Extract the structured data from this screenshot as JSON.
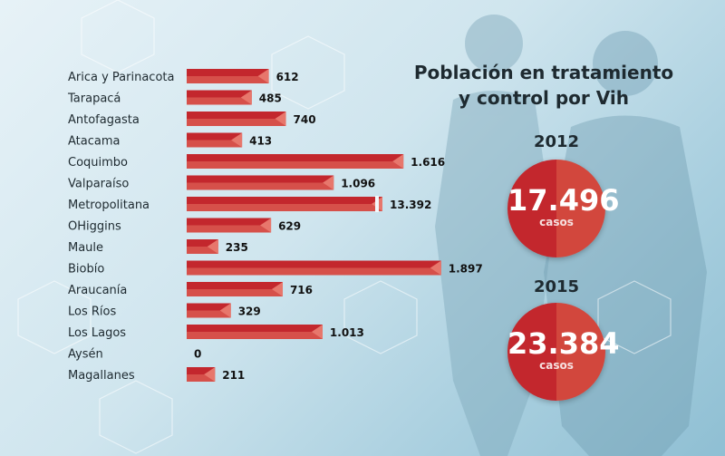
{
  "colors": {
    "bar": "#c3272d",
    "bar_light": "#d6504a",
    "text": "#1e2a30"
  },
  "chart_data": {
    "type": "bar",
    "orientation": "horizontal",
    "categories": [
      "Arica y Parinacota",
      "Tarapacá",
      "Antofagasta",
      "Atacama",
      "Coquimbo",
      "Valparaíso",
      "Metropolitana",
      "OHiggins",
      "Maule",
      "Biobío",
      "Araucanía",
      "Los Ríos",
      "Los Lagos",
      "Aysén",
      "Magallanes"
    ],
    "values": [
      612,
      485,
      740,
      413,
      1616,
      1096,
      13392,
      629,
      235,
      1897,
      716,
      329,
      1013,
      0,
      211
    ],
    "value_labels": [
      "612",
      "485",
      "740",
      "413",
      "1.616",
      "1.096",
      "13.392",
      "629",
      "235",
      "1.897",
      "716",
      "329",
      "1.013",
      "0",
      "211"
    ],
    "title": "Población en tratamiento y control por Vih",
    "title_lines": [
      "Población en tratamiento",
      "y control por Vih"
    ],
    "note": "Metropolitana bar shown with a broken axis",
    "legend": "none",
    "grid": false
  },
  "totals": [
    {
      "year": "2012",
      "value": "17.496",
      "unit": "casos"
    },
    {
      "year": "2015",
      "value": "23.384",
      "unit": "casos"
    }
  ]
}
